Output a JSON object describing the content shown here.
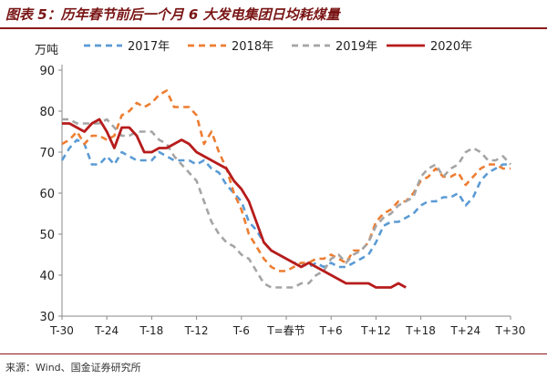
{
  "title": "图表 5：历年春节前后一个月 6 大发电集团日均耗煤量",
  "source": "来源：Wind、国金证券研究所",
  "colors": {
    "title": "#7a1515",
    "s2017": "#5b9bd5",
    "s2018": "#ed7d31",
    "s2019": "#a5a5a5",
    "s2020": "#b71c1c"
  },
  "chart_data": {
    "type": "line",
    "ylabel": "万吨",
    "ylim": [
      30,
      90
    ],
    "yticks": [
      30,
      40,
      50,
      60,
      70,
      80,
      90
    ],
    "xlim": [
      -30,
      30
    ],
    "xticks": [
      -30,
      -24,
      -18,
      -12,
      -6,
      0,
      6,
      12,
      18,
      24,
      30
    ],
    "xtick_labels": [
      "T-30",
      "T-24",
      "T-18",
      "T-12",
      "T-6",
      "T=春节",
      "T+6",
      "T+12",
      "T+18",
      "T+24",
      "T+30"
    ],
    "grid": false,
    "legend_position": "top",
    "series": [
      {
        "name": "2017年",
        "style": "dashed",
        "x": [
          -30,
          -29,
          -28,
          -27,
          -26,
          -25,
          -24,
          -23,
          -22,
          -21,
          -20,
          -19,
          -18,
          -17,
          -16,
          -15,
          -14,
          -13,
          -12,
          -11,
          -10,
          -9,
          -8,
          -7,
          -6,
          -5,
          -4,
          -3,
          -2,
          -1,
          0,
          1,
          2,
          3,
          4,
          5,
          6,
          7,
          8,
          9,
          10,
          11,
          12,
          13,
          14,
          15,
          16,
          17,
          18,
          19,
          20,
          21,
          22,
          23,
          24,
          25,
          26,
          27,
          28,
          29,
          30
        ],
        "values": [
          68,
          71,
          73,
          72,
          67,
          67,
          69,
          67,
          70,
          69,
          68,
          68,
          68,
          70,
          69,
          68,
          68,
          68,
          67,
          68,
          66,
          65,
          62,
          60,
          58,
          53,
          51,
          48,
          46,
          45,
          44,
          43,
          43,
          42,
          43,
          42,
          43,
          42,
          42,
          43,
          44,
          45,
          48,
          52,
          53,
          53,
          54,
          55,
          57,
          58,
          58,
          59,
          59,
          60,
          57,
          59,
          63,
          65,
          66,
          67,
          67
        ]
      },
      {
        "name": "2018年",
        "style": "dashed",
        "x": [
          -30,
          -29,
          -28,
          -27,
          -26,
          -25,
          -24,
          -23,
          -22,
          -21,
          -20,
          -19,
          -18,
          -17,
          -16,
          -15,
          -14,
          -13,
          -12,
          -11,
          -10,
          -9,
          -8,
          -7,
          -6,
          -5,
          -4,
          -3,
          -2,
          -1,
          0,
          1,
          2,
          3,
          4,
          5,
          6,
          7,
          8,
          9,
          10,
          11,
          12,
          13,
          14,
          15,
          16,
          17,
          18,
          19,
          20,
          21,
          22,
          23,
          24,
          25,
          26,
          27,
          28,
          29,
          30
        ],
        "values": [
          72,
          73,
          75,
          72,
          74,
          74,
          73,
          74,
          79,
          80,
          82,
          81,
          82,
          84,
          85,
          81,
          81,
          81,
          79,
          72,
          75,
          70,
          66,
          60,
          56,
          50,
          47,
          44,
          42,
          41,
          41,
          42,
          43,
          43,
          44,
          44,
          45,
          44,
          43,
          46,
          46,
          48,
          53,
          55,
          56,
          58,
          58,
          60,
          63,
          64,
          66,
          64,
          64,
          65,
          62,
          64,
          66,
          67,
          67,
          66,
          66
        ]
      },
      {
        "name": "2019年",
        "style": "dashed",
        "x": [
          -30,
          -29,
          -28,
          -27,
          -26,
          -25,
          -24,
          -23,
          -22,
          -21,
          -20,
          -19,
          -18,
          -17,
          -16,
          -15,
          -14,
          -13,
          -12,
          -11,
          -10,
          -9,
          -8,
          -7,
          -6,
          -5,
          -4,
          -3,
          -2,
          -1,
          0,
          1,
          2,
          3,
          4,
          5,
          6,
          7,
          8,
          9,
          10,
          11,
          12,
          13,
          14,
          15,
          16,
          17,
          18,
          19,
          20,
          21,
          22,
          23,
          24,
          25,
          26,
          27,
          28,
          29,
          30
        ],
        "values": [
          78,
          78,
          77,
          77,
          77,
          77,
          78,
          76,
          74,
          74,
          75,
          75,
          75,
          73,
          72,
          69,
          67,
          65,
          63,
          58,
          53,
          50,
          48,
          47,
          45,
          44,
          41,
          38,
          37,
          37,
          37,
          37,
          38,
          38,
          40,
          41,
          44,
          45,
          43,
          45,
          46,
          48,
          52,
          54,
          55,
          57,
          58,
          59,
          64,
          66,
          67,
          64,
          66,
          67,
          70,
          71,
          70,
          68,
          68,
          69,
          67
        ]
      },
      {
        "name": "2020年",
        "style": "solid",
        "x": [
          -30,
          -29,
          -28,
          -27,
          -26,
          -25,
          -24,
          -23,
          -22,
          -21,
          -20,
          -19,
          -18,
          -17,
          -16,
          -15,
          -14,
          -13,
          -12,
          -11,
          -10,
          -9,
          -8,
          -7,
          -6,
          -5,
          -4,
          -3,
          -2,
          -1,
          0,
          1,
          2,
          3,
          4,
          5,
          6,
          7,
          8,
          9,
          10,
          11,
          12,
          13,
          14,
          15,
          16
        ],
        "values": [
          77,
          77,
          76,
          75,
          77,
          78,
          75,
          71,
          76,
          76,
          74,
          70,
          70,
          71,
          71,
          72,
          73,
          72,
          70,
          69,
          68,
          67,
          66,
          63,
          61,
          58,
          53,
          48,
          46,
          45,
          44,
          43,
          42,
          43,
          42,
          41,
          40,
          39,
          38,
          38,
          38,
          38,
          37,
          37,
          37,
          38,
          37
        ]
      }
    ]
  }
}
